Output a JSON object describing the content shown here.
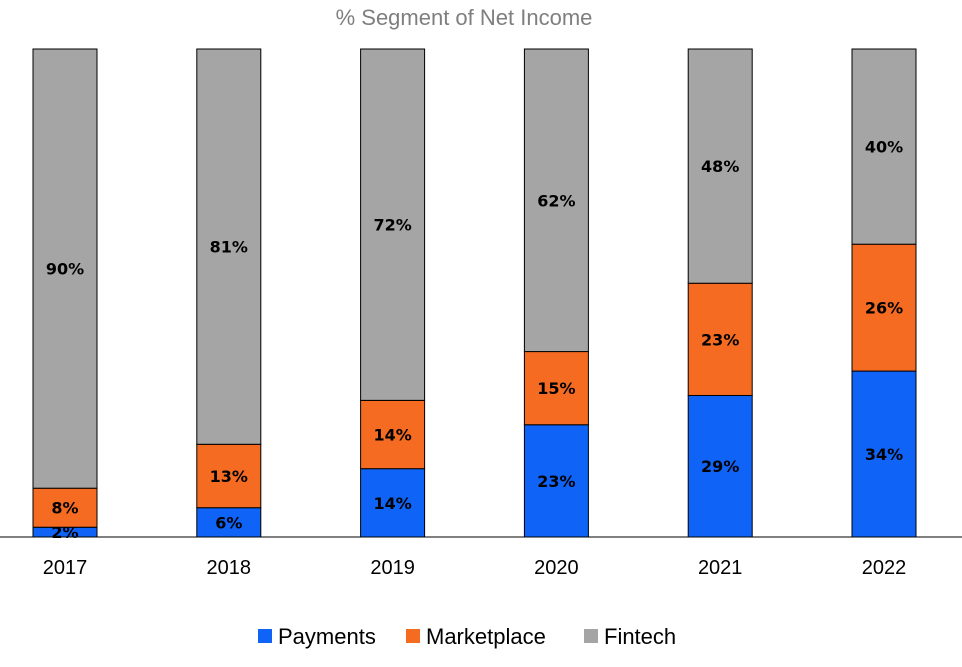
{
  "chart_data": {
    "type": "bar",
    "stacked": true,
    "title": "% Segment of Net Income",
    "xlabel": "",
    "ylabel": "",
    "ylim": [
      0,
      100
    ],
    "grid": false,
    "legend_position": "bottom",
    "categories": [
      "2017",
      "2018",
      "2019",
      "2020",
      "2021",
      "2022"
    ],
    "series": [
      {
        "name": "Payments",
        "color": "#0f63f7",
        "values": [
          2,
          6,
          14,
          23,
          29,
          34
        ],
        "labels": [
          "2%",
          "6%",
          "14%",
          "23%",
          "29%",
          "34%"
        ]
      },
      {
        "name": "Marketplace",
        "color": "#f56b22",
        "values": [
          8,
          13,
          14,
          15,
          23,
          26
        ],
        "labels": [
          "8%",
          "13%",
          "14%",
          "15%",
          "23%",
          "26%"
        ]
      },
      {
        "name": "Fintech",
        "color": "#a5a5a5",
        "values": [
          90,
          81,
          72,
          62,
          48,
          40
        ],
        "labels": [
          "90%",
          "81%",
          "72%",
          "62%",
          "48%",
          "40%"
        ]
      }
    ]
  }
}
